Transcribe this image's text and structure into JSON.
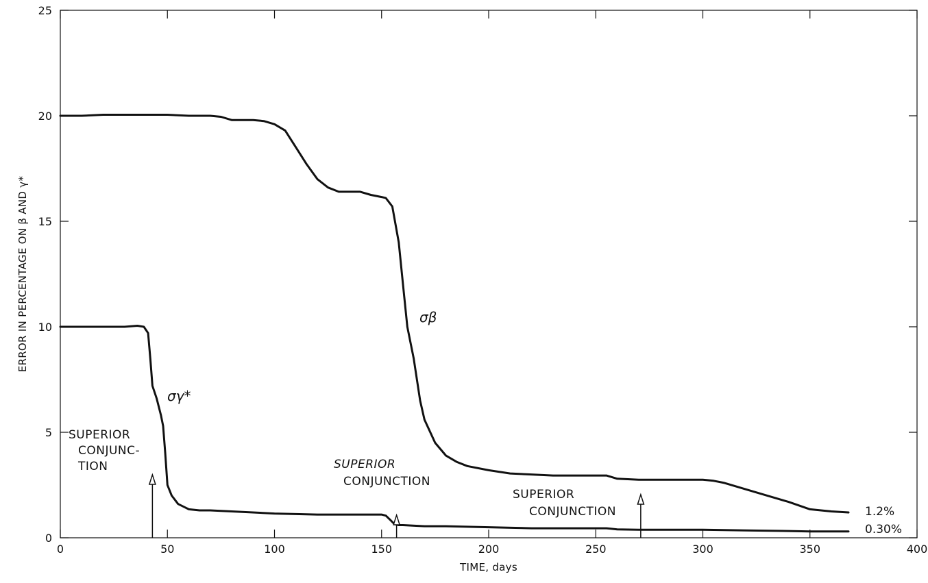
{
  "chart_data": {
    "type": "line",
    "xlabel": "TIME, days",
    "ylabel": "ERROR IN PERCENTAGE ON β AND γ*",
    "xlim": [
      0,
      400
    ],
    "ylim": [
      0,
      25
    ],
    "x_ticks": [
      0,
      50,
      100,
      150,
      200,
      250,
      300,
      350,
      400
    ],
    "y_ticks": [
      0,
      5,
      10,
      15,
      20,
      25
    ],
    "x_tick_labels": [
      "0",
      "50",
      "100",
      "150",
      "200",
      "250",
      "300",
      "350",
      "400"
    ],
    "y_tick_labels": [
      "0",
      "5",
      "10",
      "15",
      "20",
      "25"
    ],
    "grid": false,
    "line_color": "#111111",
    "series": [
      {
        "name": "σβ",
        "end_label": "1.2%",
        "x": [
          0,
          10,
          20,
          30,
          40,
          50,
          60,
          70,
          75,
          80,
          90,
          95,
          100,
          105,
          110,
          115,
          120,
          125,
          130,
          135,
          140,
          145,
          150,
          152,
          155,
          158,
          160,
          162,
          165,
          168,
          170,
          175,
          180,
          185,
          190,
          200,
          210,
          220,
          230,
          240,
          250,
          255,
          260,
          270,
          280,
          290,
          300,
          305,
          310,
          320,
          330,
          340,
          350,
          360,
          368
        ],
        "values": [
          20.0,
          20.0,
          20.05,
          20.05,
          20.05,
          20.05,
          20.0,
          20.0,
          19.95,
          19.8,
          19.8,
          19.75,
          19.6,
          19.3,
          18.5,
          17.7,
          17.0,
          16.6,
          16.4,
          16.4,
          16.4,
          16.25,
          16.15,
          16.1,
          15.7,
          14.0,
          12.0,
          10.0,
          8.5,
          6.5,
          5.6,
          4.5,
          3.9,
          3.6,
          3.4,
          3.2,
          3.05,
          3.0,
          2.95,
          2.95,
          2.95,
          2.95,
          2.8,
          2.75,
          2.75,
          2.75,
          2.75,
          2.7,
          2.6,
          2.3,
          2.0,
          1.7,
          1.35,
          1.25,
          1.2
        ]
      },
      {
        "name": "σγ*",
        "end_label": "0.30%",
        "x": [
          0,
          10,
          20,
          30,
          36,
          39,
          41,
          42,
          43,
          45,
          47,
          48,
          49,
          50,
          52,
          55,
          58,
          60,
          65,
          70,
          80,
          100,
          120,
          140,
          150,
          152,
          154,
          156,
          158,
          160,
          170,
          180,
          200,
          220,
          240,
          250,
          255,
          260,
          270,
          300,
          320,
          340,
          350,
          360,
          368
        ],
        "values": [
          10.0,
          10.0,
          10.0,
          10.0,
          10.05,
          10.0,
          9.7,
          8.5,
          7.2,
          6.6,
          5.8,
          5.3,
          4.0,
          2.5,
          2.0,
          1.6,
          1.45,
          1.35,
          1.3,
          1.3,
          1.25,
          1.15,
          1.1,
          1.1,
          1.1,
          1.05,
          0.85,
          0.65,
          0.6,
          0.6,
          0.55,
          0.55,
          0.5,
          0.45,
          0.45,
          0.45,
          0.45,
          0.4,
          0.38,
          0.38,
          0.35,
          0.32,
          0.3,
          0.3,
          0.3
        ]
      }
    ],
    "annotations": [
      {
        "lines": [
          "SUPERIOR",
          "CONJUNC-",
          "TION"
        ],
        "arrow_x": 43,
        "italic": false
      },
      {
        "lines": [
          "SUPERIOR",
          "CONJUNCTION"
        ],
        "arrow_x": 157,
        "italic": true
      },
      {
        "lines": [
          "SUPERIOR",
          "CONJUNCTION"
        ],
        "arrow_x": 271,
        "italic": false
      }
    ]
  }
}
